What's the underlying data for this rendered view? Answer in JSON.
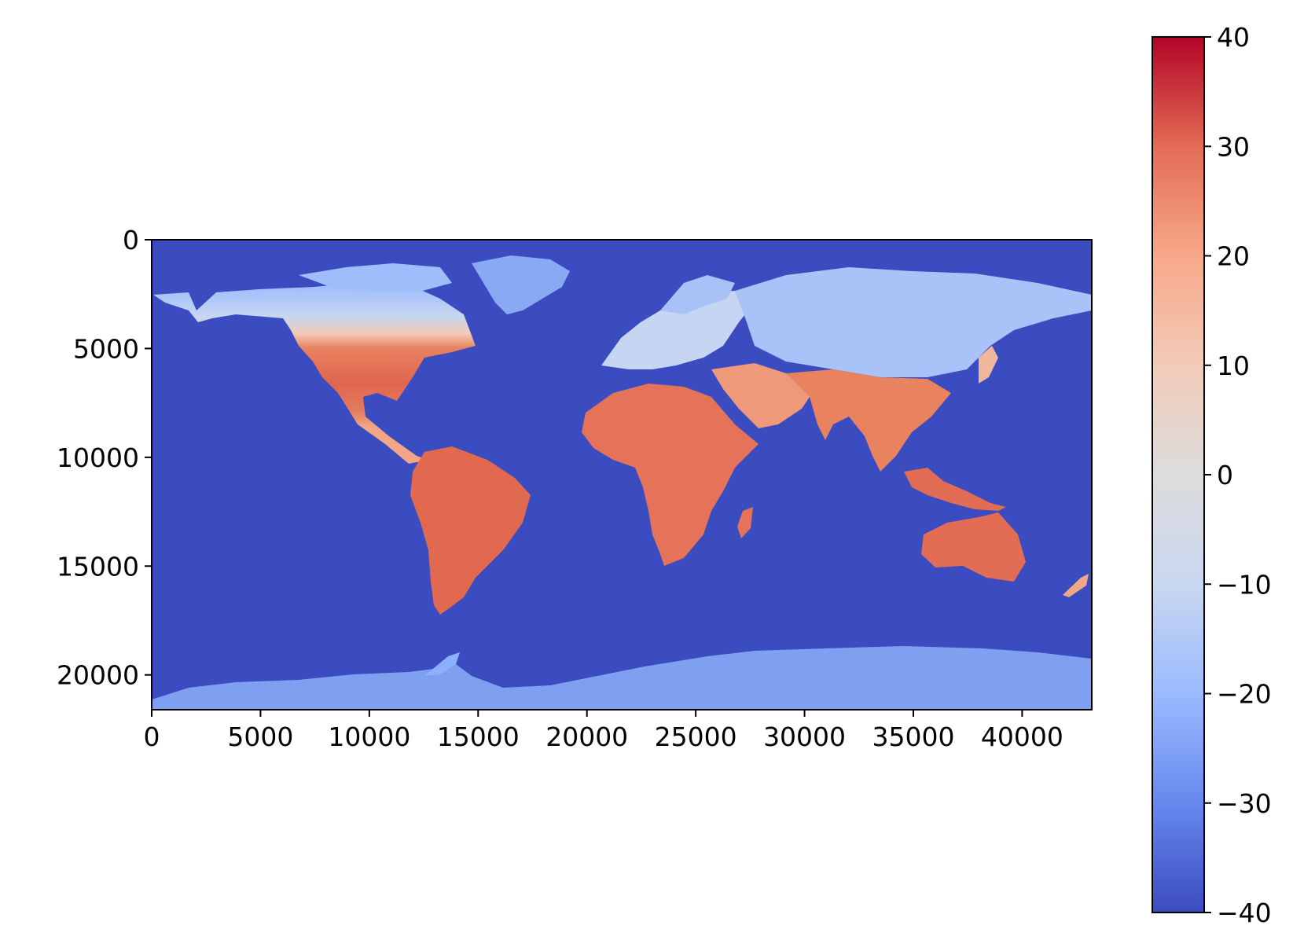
{
  "chart_data": {
    "type": "heatmap",
    "title": "",
    "xlabel": "",
    "ylabel": "",
    "xlim": [
      0,
      43200
    ],
    "ylim": [
      21600,
      0
    ],
    "x_ticks": [
      0,
      5000,
      10000,
      15000,
      20000,
      25000,
      30000,
      35000,
      40000
    ],
    "x_tick_labels": [
      "0",
      "5000",
      "10000",
      "15000",
      "20000",
      "25000",
      "30000",
      "35000",
      "40000"
    ],
    "y_ticks": [
      0,
      5000,
      10000,
      15000,
      20000
    ],
    "y_tick_labels": [
      "0",
      "5000",
      "10000",
      "15000",
      "20000"
    ],
    "colormap": "coolwarm",
    "colorbar": {
      "vmin": -40,
      "vmax": 40,
      "ticks": [
        -40,
        -30,
        -20,
        -10,
        0,
        10,
        20,
        30,
        40
      ],
      "tick_labels": [
        "−40",
        "−30",
        "−20",
        "−10",
        "0",
        "10",
        "20",
        "30",
        "40"
      ],
      "placement": "right"
    },
    "description_values": {
      "ocean_value": -40,
      "tropical_land_approx": 28,
      "polar_land_approx": -25
    },
    "grid": false
  },
  "colors": {
    "ocean": "#3b4cc0",
    "cold_land": "#8caffe",
    "cool_land": "#c5d6f2",
    "warm_land": "#f5a081",
    "hot_land": "#e0654f",
    "colormap_stops": [
      "#3b4cc0",
      "#6788ee",
      "#9abbff",
      "#c9d7f0",
      "#dddcdc",
      "#f2cbb7",
      "#f7a889",
      "#e36c55",
      "#b40426"
    ]
  }
}
